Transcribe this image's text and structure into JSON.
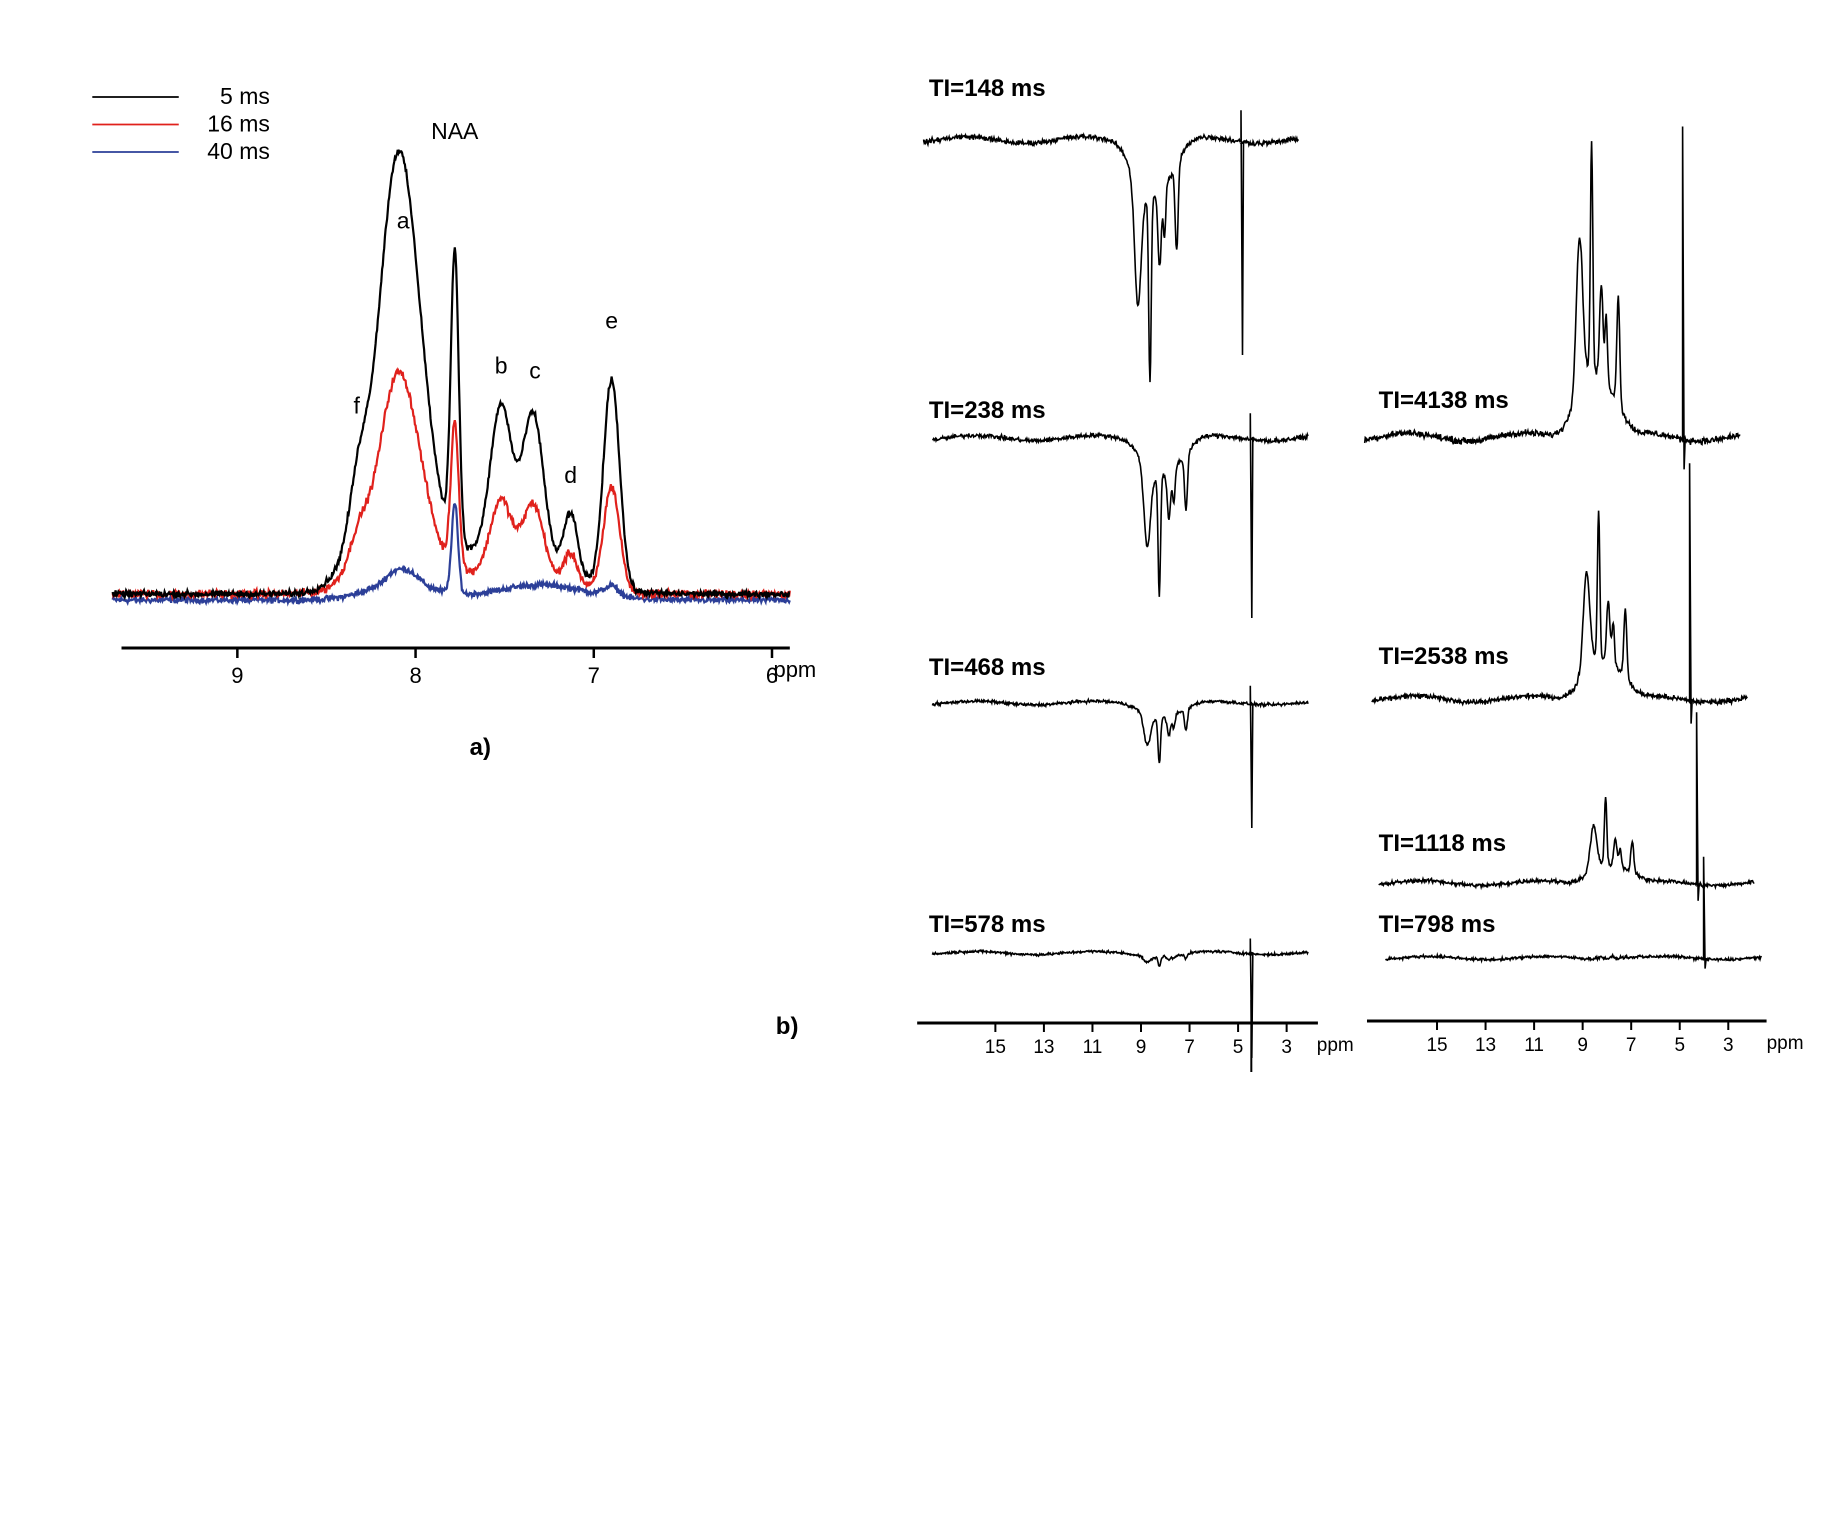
{
  "chart_data": [
    {
      "type": "line",
      "panel_label": "a)",
      "title": "",
      "xlabel": "ppm",
      "ylabel": "",
      "x_reversed": true,
      "xlim": [
        9.65,
        5.9
      ],
      "ylim": [
        -0.05,
        1.0
      ],
      "x_ticks": [
        {
          "value": 9,
          "label": "9"
        },
        {
          "value": 8,
          "label": "8"
        },
        {
          "value": 7,
          "label": "7"
        },
        {
          "value": 6,
          "label": "6"
        }
      ],
      "legend_position": "top-left",
      "series": [
        {
          "name": "5 ms",
          "label": "5 ms",
          "color": "#000000",
          "scale": 1.0
        },
        {
          "name": "16 ms",
          "label": "16 ms",
          "color": "#e0211c",
          "scale": 0.5
        },
        {
          "name": "40 ms",
          "label": "40 ms",
          "color": "#2c3f98",
          "scale": 0.2
        }
      ],
      "peaks": [
        {
          "name": "f",
          "label": "f",
          "ppm": 8.33,
          "height": 0.35
        },
        {
          "name": "a",
          "label": "a",
          "ppm": 8.07,
          "height": 0.72
        },
        {
          "name": "NAA",
          "label": "NAA",
          "ppm": 7.78,
          "height": 0.9
        },
        {
          "name": "b",
          "label": "b",
          "ppm": 7.52,
          "height": 0.43
        },
        {
          "name": "c",
          "label": "c",
          "ppm": 7.33,
          "height": 0.42
        },
        {
          "name": "d",
          "label": "d",
          "ppm": 7.13,
          "height": 0.21
        },
        {
          "name": "e",
          "label": "e",
          "ppm": 6.9,
          "height": 0.52
        }
      ]
    },
    {
      "type": "line",
      "panel_label": "b)",
      "title": "",
      "xlabel": "ppm",
      "ylabel": "",
      "x_reversed": true,
      "xlim": [
        17.5,
        2.0
      ],
      "x_ticks": [
        {
          "value": 15,
          "label": "15"
        },
        {
          "value": 13,
          "label": "13"
        },
        {
          "value": 11,
          "label": "11"
        },
        {
          "value": 9,
          "label": "9"
        },
        {
          "value": 7,
          "label": "7"
        },
        {
          "value": 5,
          "label": "5"
        },
        {
          "value": 3,
          "label": "3"
        }
      ],
      "series": [
        {
          "name": "TI=148 ms",
          "label": "TI=148 ms",
          "amplitude": -1.0,
          "column": "left"
        },
        {
          "name": "TI=238 ms",
          "label": "TI=238 ms",
          "amplitude": -0.78,
          "column": "left"
        },
        {
          "name": "TI=468 ms",
          "label": "TI=468 ms",
          "amplitude": -0.43,
          "column": "left"
        },
        {
          "name": "TI=578 ms",
          "label": "TI=578 ms",
          "amplitude": -0.1,
          "column": "left"
        },
        {
          "name": "TI=798 ms",
          "label": "TI=798 ms",
          "amplitude": 0.03,
          "column": "right"
        },
        {
          "name": "TI=1118 ms",
          "label": "TI=1118 ms",
          "amplitude": 0.48,
          "column": "right"
        },
        {
          "name": "TI=2538 ms",
          "label": "TI=2538 ms",
          "amplitude": 0.84,
          "column": "right"
        },
        {
          "name": "TI=4138 ms",
          "label": "TI=4138 ms",
          "amplitude": 1.0,
          "column": "right"
        }
      ]
    }
  ]
}
